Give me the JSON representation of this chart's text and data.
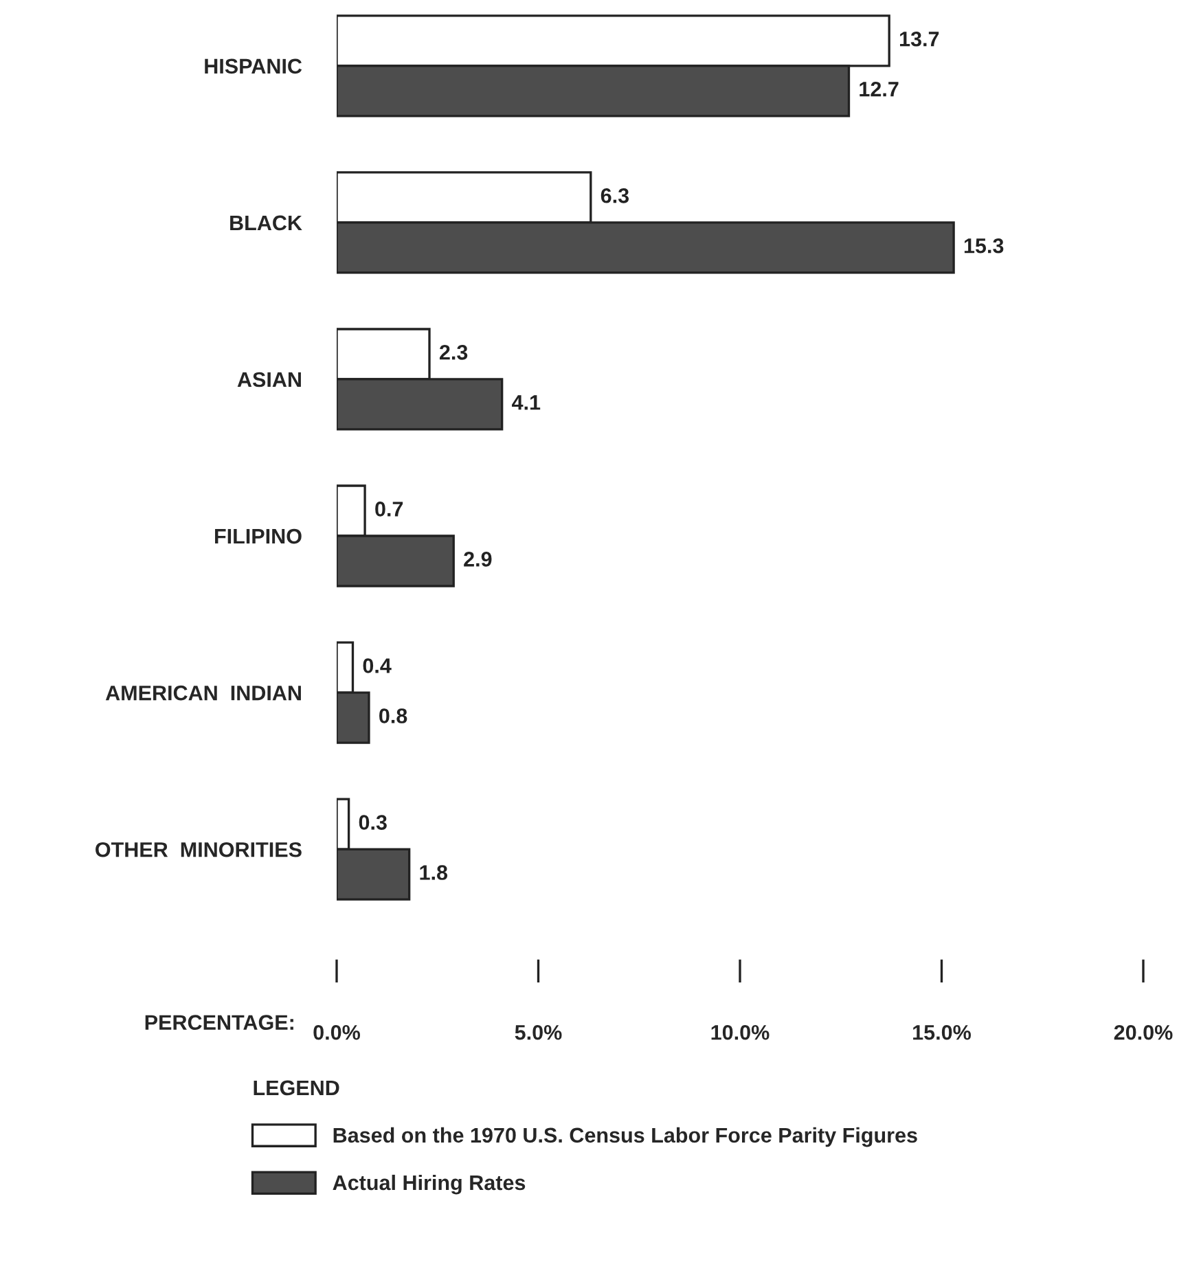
{
  "chart_data": {
    "type": "bar",
    "orientation": "horizontal",
    "xlabel": "PERCENTAGE:",
    "legend_title": "LEGEND",
    "categories": [
      "HISPANIC",
      "BLACK",
      "ASIAN",
      "FILIPINO",
      "AMERICAN  INDIAN",
      "OTHER  MINORITIES"
    ],
    "series": [
      {
        "name": "Based on the 1970 U.S. Census Labor Force Parity Figures",
        "color": "#ffffff",
        "values": [
          13.7,
          6.3,
          2.3,
          0.7,
          0.4,
          0.3
        ]
      },
      {
        "name": "Actual Hiring Rates",
        "color": "#4d4d4d",
        "values": [
          12.7,
          15.3,
          4.1,
          2.9,
          0.8,
          1.8
        ]
      }
    ],
    "xlim": [
      0,
      20
    ],
    "xticks": [
      {
        "value": 0,
        "label": "0.0%"
      },
      {
        "value": 5,
        "label": "5.0%"
      },
      {
        "value": 10,
        "label": "10.0%"
      },
      {
        "value": 15,
        "label": "15.0%"
      },
      {
        "value": 20,
        "label": "20.0%"
      }
    ],
    "data_labels": true,
    "legend": "bottom",
    "grid": false
  }
}
